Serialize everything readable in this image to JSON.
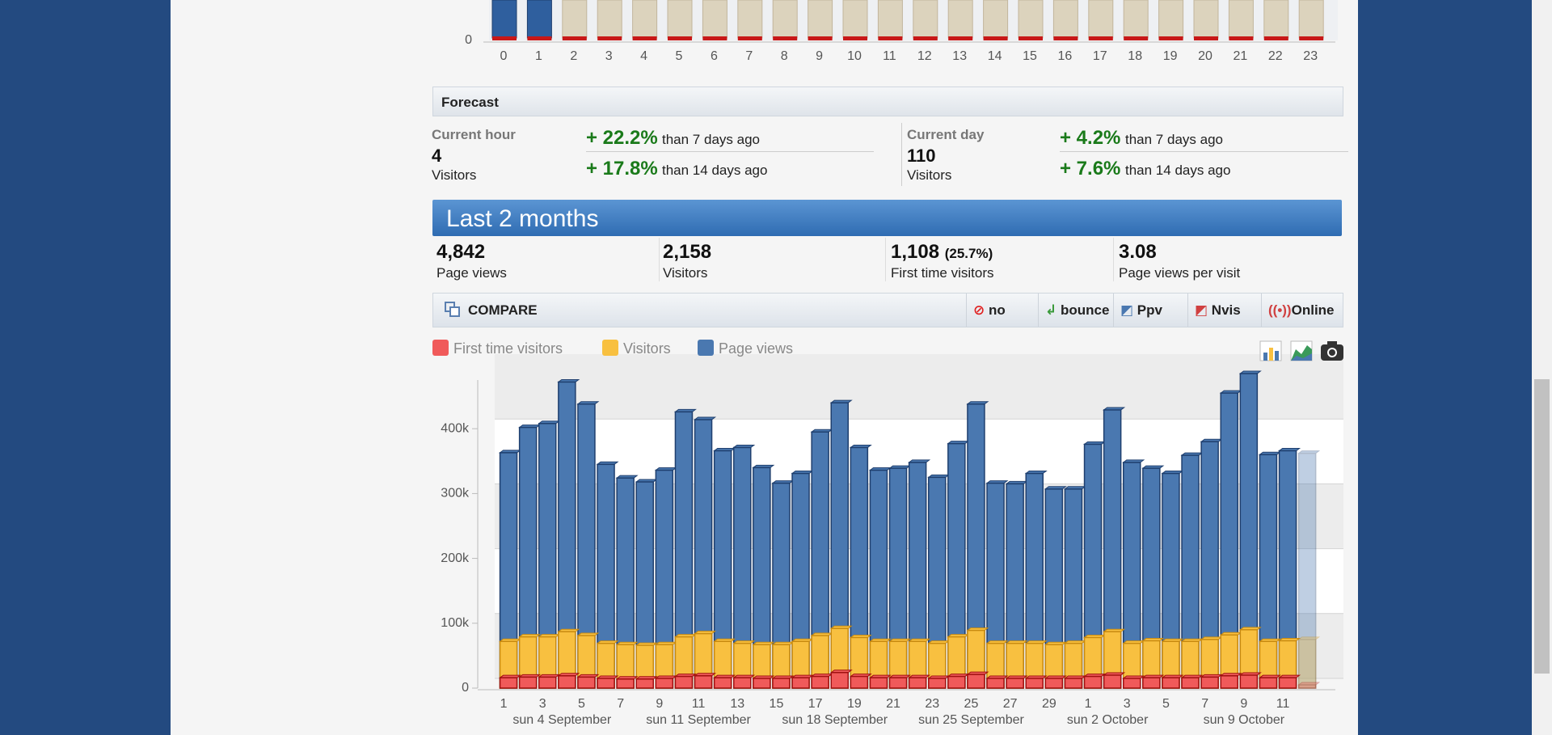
{
  "hourly_chart": {
    "type": "bar",
    "categories": [
      0,
      1,
      2,
      3,
      4,
      5,
      6,
      7,
      8,
      9,
      10,
      11,
      12,
      13,
      14,
      15,
      16,
      17,
      18,
      19,
      20,
      21,
      22,
      23
    ],
    "yticks": [
      0
    ]
  },
  "forecast": {
    "title": "Forecast",
    "current_hour": {
      "label": "Current hour",
      "value": "4",
      "unit": "Visitors",
      "comparisons": [
        {
          "change": "+ 22.2%",
          "text": "than 7 days ago"
        },
        {
          "change": "+ 17.8%",
          "text": "than 14 days ago"
        }
      ]
    },
    "current_day": {
      "label": "Current day",
      "value": "110",
      "unit": "Visitors",
      "comparisons": [
        {
          "change": "+ 4.2%",
          "text": "than 7 days ago"
        },
        {
          "change": "+ 7.6%",
          "text": "than 14 days ago"
        }
      ]
    }
  },
  "summary": {
    "title": "Last 2 months",
    "stats": [
      {
        "value": "4,842",
        "label": "Page views"
      },
      {
        "value": "2,158",
        "label": "Visitors"
      },
      {
        "value": "1,108",
        "extra": "(25.7%)",
        "label": "First time visitors"
      },
      {
        "value": "3.08",
        "label": "Page views per visit"
      }
    ]
  },
  "compare": {
    "title": "COMPARE",
    "buttons": [
      "no",
      "bounce",
      "Ppv",
      "Nvis",
      "Online"
    ]
  },
  "chart_data": {
    "type": "bar",
    "categories": [
      "1",
      null,
      "3",
      null,
      "5",
      null,
      "7",
      null,
      "9",
      null,
      "11",
      null,
      "13",
      null,
      "15",
      null,
      "17",
      null,
      "19",
      null,
      "21",
      null,
      "23",
      null,
      "25",
      null,
      "27",
      null,
      "29",
      null,
      "1",
      null,
      "3",
      null,
      "5",
      null,
      "7",
      null,
      "9",
      null,
      "11",
      null
    ],
    "week_labels": [
      null,
      null,
      null,
      "sun 4 September",
      null,
      null,
      null,
      null,
      null,
      null,
      "sun 11 September",
      null,
      null,
      null,
      null,
      null,
      null,
      "sun 18 September",
      null,
      null,
      null,
      null,
      null,
      null,
      "sun 25 September",
      null,
      null,
      null,
      null,
      null,
      null,
      "sun 2 October",
      null,
      null,
      null,
      null,
      null,
      null,
      "sun 9 October",
      null,
      null,
      null
    ],
    "highlighted": [
      2,
      10,
      16,
      24,
      30,
      38
    ],
    "highlight_color": "#e03020",
    "partial_last": true,
    "series": [
      {
        "name": "First time visitors",
        "color": "#f05a5a",
        "values": [
          16000,
          17000,
          17000,
          19000,
          17000,
          15000,
          14000,
          14000,
          15000,
          18000,
          19000,
          16000,
          16000,
          15000,
          15000,
          16000,
          18000,
          24000,
          18000,
          16000,
          16000,
          16000,
          15000,
          18000,
          21000,
          15000,
          15000,
          15000,
          15000,
          15000,
          18000,
          20000,
          15000,
          16000,
          16000,
          16000,
          17000,
          19000,
          20000,
          16000,
          16000,
          5000
        ]
      },
      {
        "name": "Visitors",
        "color": "#f8c040",
        "values": [
          72000,
          79000,
          79000,
          87000,
          81000,
          69000,
          67000,
          66000,
          67000,
          79000,
          84000,
          72000,
          69000,
          67000,
          67000,
          72000,
          81000,
          92000,
          78000,
          72000,
          72000,
          72000,
          69000,
          79000,
          89000,
          69000,
          69000,
          69000,
          67000,
          69000,
          78000,
          87000,
          69000,
          73000,
          72000,
          72000,
          75000,
          82000,
          90000,
          72000,
          73000,
          75000
        ]
      },
      {
        "name": "Page views",
        "color": "#4a78b0",
        "values": [
          363000,
          402000,
          408000,
          472000,
          438000,
          345000,
          324000,
          318000,
          336000,
          426000,
          414000,
          366000,
          371000,
          340000,
          316000,
          331000,
          395000,
          440000,
          371000,
          336000,
          339000,
          348000,
          325000,
          377000,
          438000,
          316000,
          315000,
          331000,
          307000,
          307000,
          376000,
          429000,
          348000,
          339000,
          331000,
          359000,
          380000,
          455000,
          485000,
          360000,
          366000,
          362000
        ]
      }
    ],
    "ylim": [
      0,
      500000
    ],
    "yticks": [
      0,
      {
        "value": 100000,
        "label": "100k"
      },
      {
        "value": 200000,
        "label": "200k"
      },
      {
        "value": 300000,
        "label": "300k"
      },
      {
        "value": 400000,
        "label": "400k"
      }
    ],
    "grid": true
  }
}
